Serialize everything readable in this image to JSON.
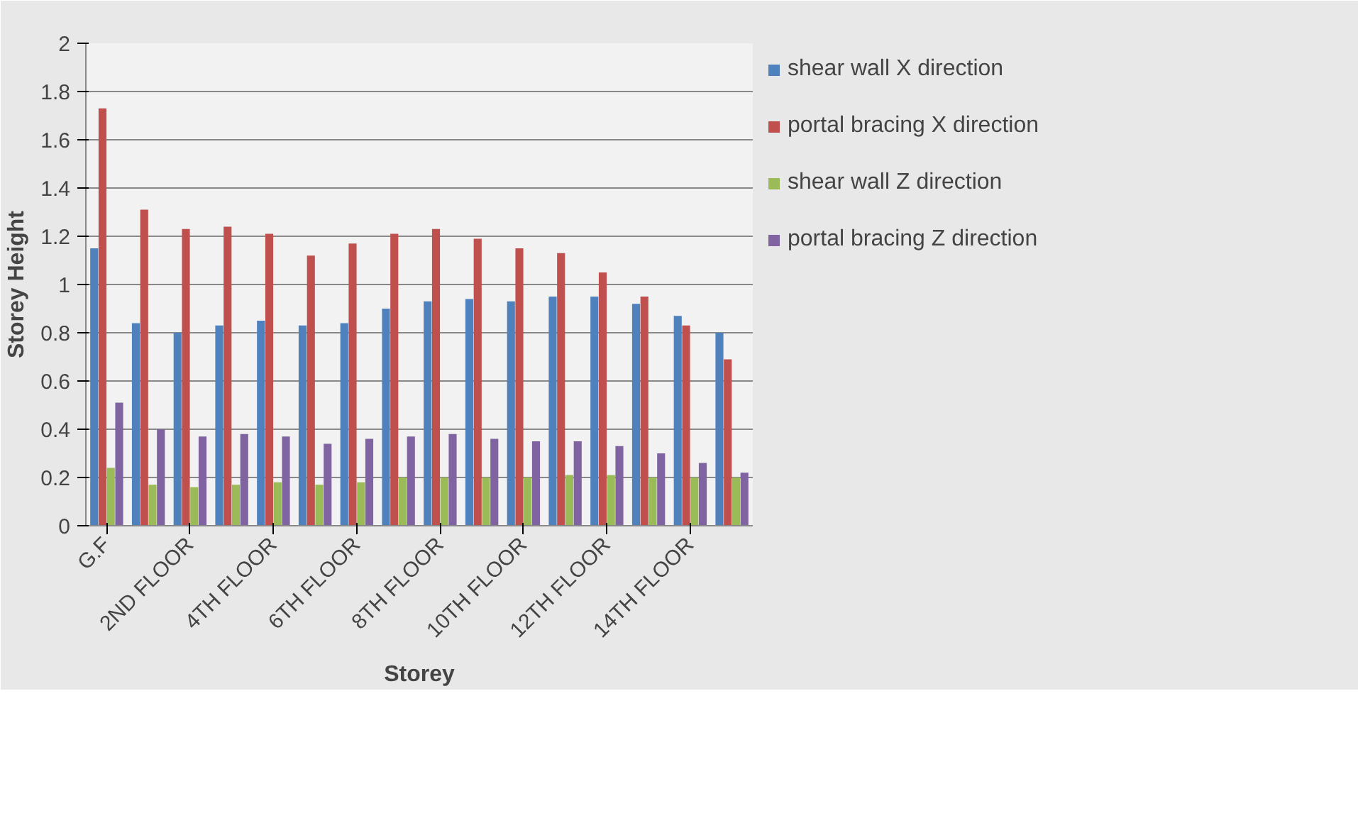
{
  "chart_data": {
    "type": "bar",
    "xlabel": "Storey",
    "ylabel": "Storey Height",
    "categories": [
      "G.F",
      null,
      "2ND FLOOR",
      null,
      "4TH FLOOR",
      null,
      "6TH FLOOR",
      null,
      "8TH FLOOR",
      null,
      "10TH FLOOR",
      null,
      "12TH FLOOR",
      null,
      "14TH FLOOR",
      null
    ],
    "series": [
      {
        "name": "shear wall X direction",
        "color": "#4f81bd",
        "values": [
          1.15,
          0.84,
          0.8,
          0.83,
          0.85,
          0.83,
          0.84,
          0.9,
          0.93,
          0.94,
          0.93,
          0.95,
          0.95,
          0.92,
          0.87,
          0.8
        ]
      },
      {
        "name": "portal bracing X direction",
        "color": "#c0504d",
        "values": [
          1.73,
          1.31,
          1.23,
          1.24,
          1.21,
          1.12,
          1.17,
          1.21,
          1.23,
          1.19,
          1.15,
          1.13,
          1.05,
          0.95,
          0.83,
          0.69
        ]
      },
      {
        "name": "shear wall Z direction",
        "color": "#9bbb59",
        "values": [
          0.24,
          0.17,
          0.16,
          0.17,
          0.18,
          0.17,
          0.18,
          0.2,
          0.2,
          0.2,
          0.2,
          0.21,
          0.21,
          0.2,
          0.2,
          0.2
        ]
      },
      {
        "name": "portal bracing Z direction",
        "color": "#8064a2",
        "values": [
          0.51,
          0.4,
          0.37,
          0.38,
          0.37,
          0.34,
          0.36,
          0.37,
          0.38,
          0.36,
          0.35,
          0.35,
          0.33,
          0.3,
          0.26,
          0.22
        ]
      }
    ],
    "ylim": [
      0,
      2
    ],
    "yticks": [
      0,
      0.2,
      0.4,
      0.6,
      0.8,
      1,
      1.2,
      1.4,
      1.6,
      1.8,
      2
    ],
    "grid": "y",
    "legend": "right"
  }
}
